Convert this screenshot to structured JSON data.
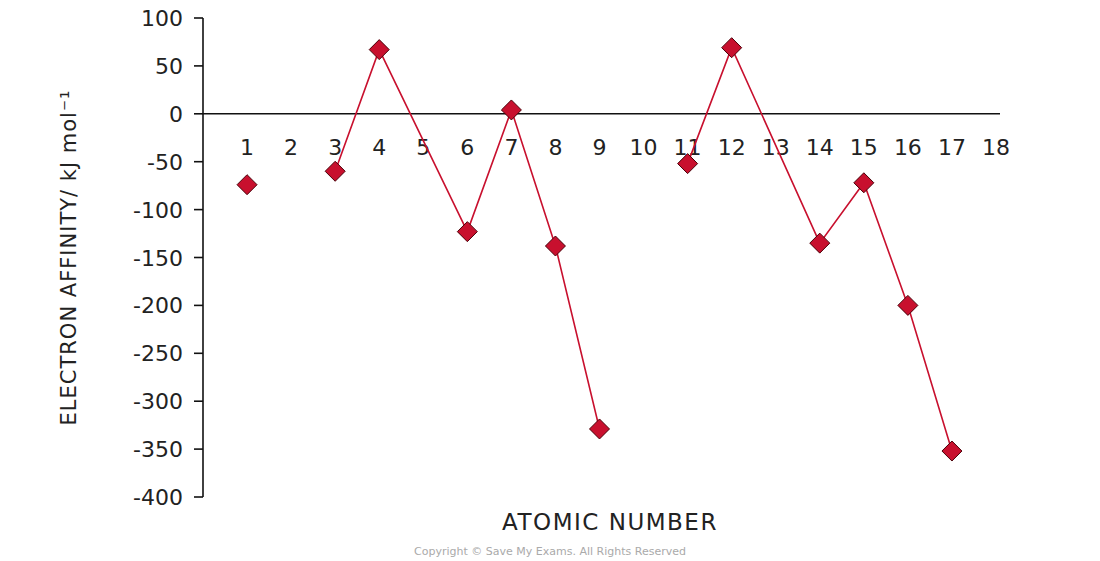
{
  "chart_data": {
    "type": "line",
    "y_label": "ELECTRON AFFINITY/ kJ mol⁻¹",
    "x_label": "ATOMIC NUMBER",
    "annotations": [
      "Copyright © Save My Exams. All Rights Reserved"
    ],
    "x": [
      1,
      2,
      3,
      4,
      6,
      7,
      8,
      9,
      10,
      11,
      12,
      14,
      15,
      16,
      17
    ],
    "values": [
      -74,
      null,
      -60,
      67,
      -123,
      4,
      -138,
      -329,
      null,
      -52,
      69,
      -135,
      -72,
      -200,
      -352
    ],
    "color": "#c8102e",
    "marker": "diamond",
    "xlim": [
      0,
      18
    ],
    "xticks": [
      1,
      2,
      3,
      4,
      5,
      6,
      7,
      8,
      9,
      10,
      11,
      12,
      13,
      14,
      15,
      16,
      17,
      18
    ],
    "ylim": [
      -400,
      100
    ],
    "yticks": [
      100,
      50,
      0,
      -50,
      -100,
      -150,
      -200,
      -250,
      -300,
      -350,
      -400
    ],
    "grid": false
  }
}
